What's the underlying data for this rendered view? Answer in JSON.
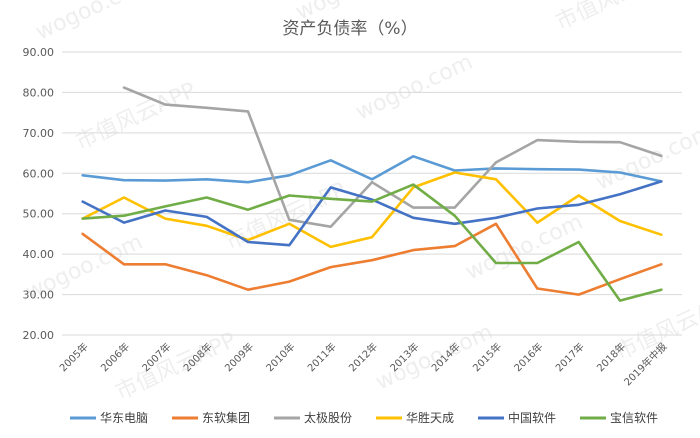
{
  "chart_data": {
    "type": "line",
    "title": "资产负债率（%）",
    "categories": [
      "2005年",
      "2006年",
      "2007年",
      "2008年",
      "2009年",
      "2010年",
      "2011年",
      "2012年",
      "2013年",
      "2014年",
      "2015年",
      "2016年",
      "2017年",
      "2018年",
      "2019年中报"
    ],
    "ylim": [
      20,
      90
    ],
    "yticks": [
      "20.00",
      "30.00",
      "40.00",
      "50.00",
      "60.00",
      "70.00",
      "80.00",
      "90.00"
    ],
    "grid": true,
    "legend_position": "bottom",
    "series": [
      {
        "name": "华东电脑",
        "color": "#5b9bd5",
        "values": [
          59.5,
          58.3,
          58.2,
          58.5,
          57.8,
          59.5,
          63.2,
          58.5,
          64.2,
          60.7,
          61.2,
          61.0,
          60.9,
          60.2,
          58.0
        ]
      },
      {
        "name": "东软集团",
        "color": "#ed7d31",
        "values": [
          45.0,
          37.5,
          37.5,
          34.8,
          31.2,
          33.2,
          36.8,
          38.5,
          41.0,
          42.0,
          47.5,
          31.5,
          30.0,
          33.8,
          37.5
        ]
      },
      {
        "name": "太极股份",
        "color": "#a5a5a5",
        "values": [
          null,
          81.2,
          77.0,
          76.2,
          75.3,
          48.5,
          46.8,
          57.8,
          51.5,
          51.5,
          62.7,
          68.2,
          67.8,
          67.7,
          64.3
        ]
      },
      {
        "name": "华胜天成",
        "color": "#ffc000",
        "values": [
          48.8,
          54.0,
          48.8,
          47.0,
          43.5,
          47.5,
          41.8,
          44.2,
          56.5,
          60.2,
          58.5,
          47.8,
          54.5,
          48.2,
          44.8
        ]
      },
      {
        "name": "中国软件",
        "color": "#4472c4",
        "values": [
          53.0,
          47.8,
          50.8,
          49.2,
          43.0,
          42.2,
          56.5,
          53.5,
          49.0,
          47.5,
          49.0,
          51.3,
          52.2,
          54.8,
          58.0
        ]
      },
      {
        "name": "宝信软件",
        "color": "#70ad47",
        "values": [
          48.8,
          49.5,
          51.8,
          54.0,
          51.0,
          54.5,
          53.7,
          53.0,
          57.2,
          49.5,
          37.8,
          37.8,
          43.0,
          28.5,
          31.2
        ]
      }
    ],
    "watermark_texts": [
      "wogoo.com",
      "市值风云APP"
    ]
  }
}
